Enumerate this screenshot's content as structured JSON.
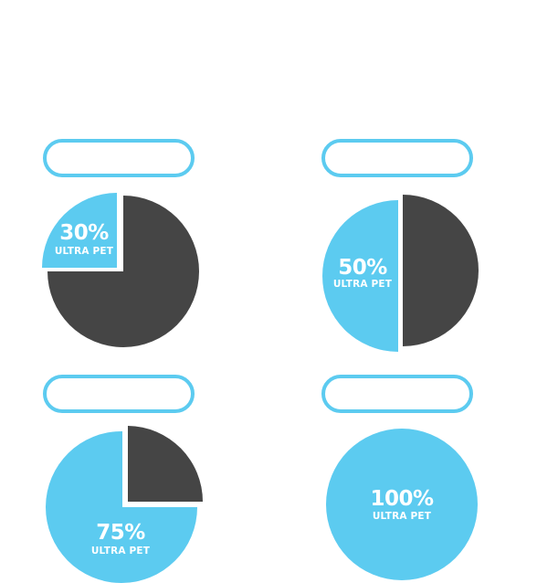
{
  "colors": {
    "blue": "#5ccbf0",
    "dark": "#454545",
    "white": "#ffffff"
  },
  "charts": [
    {
      "percent": "30%",
      "label": "ULTRA PET",
      "value": 0.3
    },
    {
      "percent": "50%",
      "label": "ULTRA PET",
      "value": 0.5
    },
    {
      "percent": "75%",
      "label": "ULTRA PET",
      "value": 0.75
    },
    {
      "percent": "100%",
      "label": "ULTRA PET",
      "value": 1.0
    }
  ]
}
